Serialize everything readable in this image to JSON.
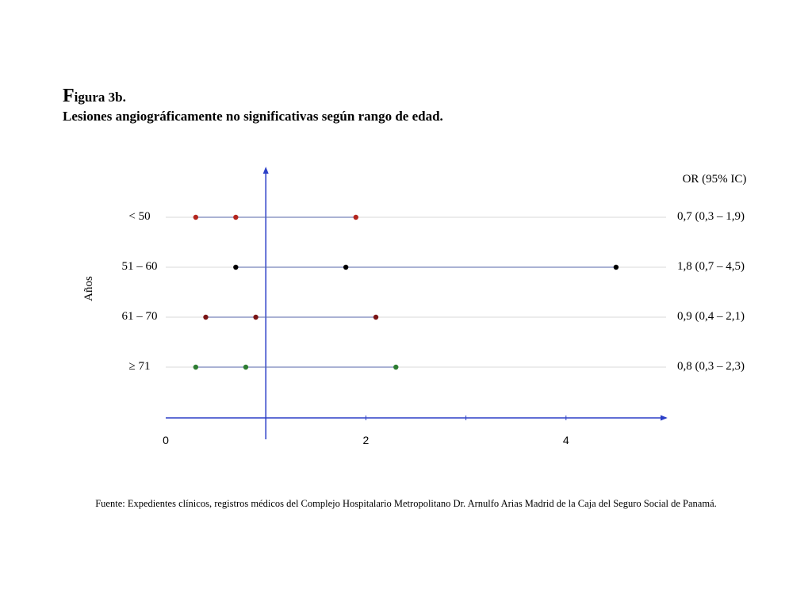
{
  "figure": {
    "title_initial": "F",
    "title_rest": "igura 3b.",
    "subtitle": "Lesiones angiográficamente no significativas según rango de edad."
  },
  "chart_data": {
    "type": "scatter",
    "subtype": "forest-plot",
    "ylabel": "Años",
    "or_header": "OR (95% IC)",
    "xlim": [
      0,
      5
    ],
    "x_ticks": [
      0,
      2,
      4
    ],
    "x_tick_labels": [
      "0",
      "2",
      "4"
    ],
    "reference_line_x": 1,
    "grid": false,
    "rows": [
      {
        "label": "< 50",
        "or": 0.7,
        "lower": 0.3,
        "upper": 1.9,
        "or_text": "0,7 (0,3 – 1,9)",
        "color": "#b3261e"
      },
      {
        "label": "51 – 60",
        "or": 1.8,
        "lower": 0.7,
        "upper": 4.5,
        "or_text": "1,8 (0,7 – 4,5)",
        "color": "#000000"
      },
      {
        "label": "61 – 70",
        "or": 0.9,
        "lower": 0.4,
        "upper": 2.1,
        "or_text": "0,9 (0,4 – 2,1)",
        "color": "#7a1515"
      },
      {
        "label": "≥ 71",
        "or": 0.8,
        "lower": 0.3,
        "upper": 2.3,
        "or_text": "0,8 (0,3 – 2,3)",
        "color": "#2e7d32"
      }
    ]
  },
  "source": "Fuente: Expedientes clínicos, registros médicos del Complejo Hospitalario Metropolitano Dr. Arnulfo Arias Madrid de la Caja del Seguro Social de Panamá.",
  "colors": {
    "axis": "#2b3fc7",
    "ci_line": "#5566aa",
    "row_guide": "#d9d9d9"
  }
}
